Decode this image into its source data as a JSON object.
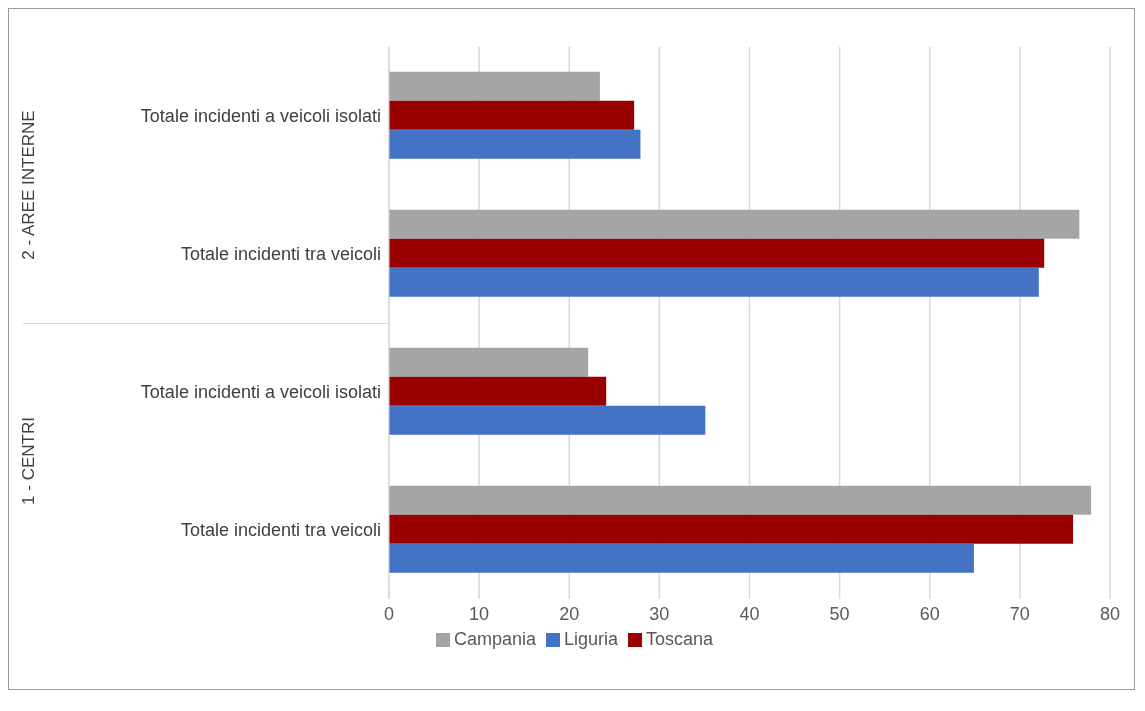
{
  "chart_data": {
    "type": "bar",
    "orientation": "horizontal",
    "categories": [
      "Totale incidenti a veicoli isolati",
      "Totale incidenti tra veicoli",
      "Totale incidenti a veicoli isolati",
      "Totale incidenti tra veicoli"
    ],
    "series": [
      {
        "name": "Campania",
        "color": "#a5a5a5",
        "values": [
          23.4,
          76.6,
          22.1,
          77.9
        ]
      },
      {
        "name": "Toscana",
        "color": "#990000",
        "values": [
          27.2,
          72.7,
          24.1,
          75.9
        ]
      },
      {
        "name": "Liguria",
        "color": "#4472c4",
        "values": [
          27.9,
          72.1,
          35.1,
          64.9
        ]
      }
    ],
    "xlim": [
      0,
      80
    ],
    "xticks": [
      0,
      10,
      20,
      30,
      40,
      50,
      60,
      70,
      80
    ],
    "grid": "x",
    "legend": "bottom",
    "annotations": [
      "2 - AREE INTERNE",
      "1 - CENTRI"
    ]
  }
}
